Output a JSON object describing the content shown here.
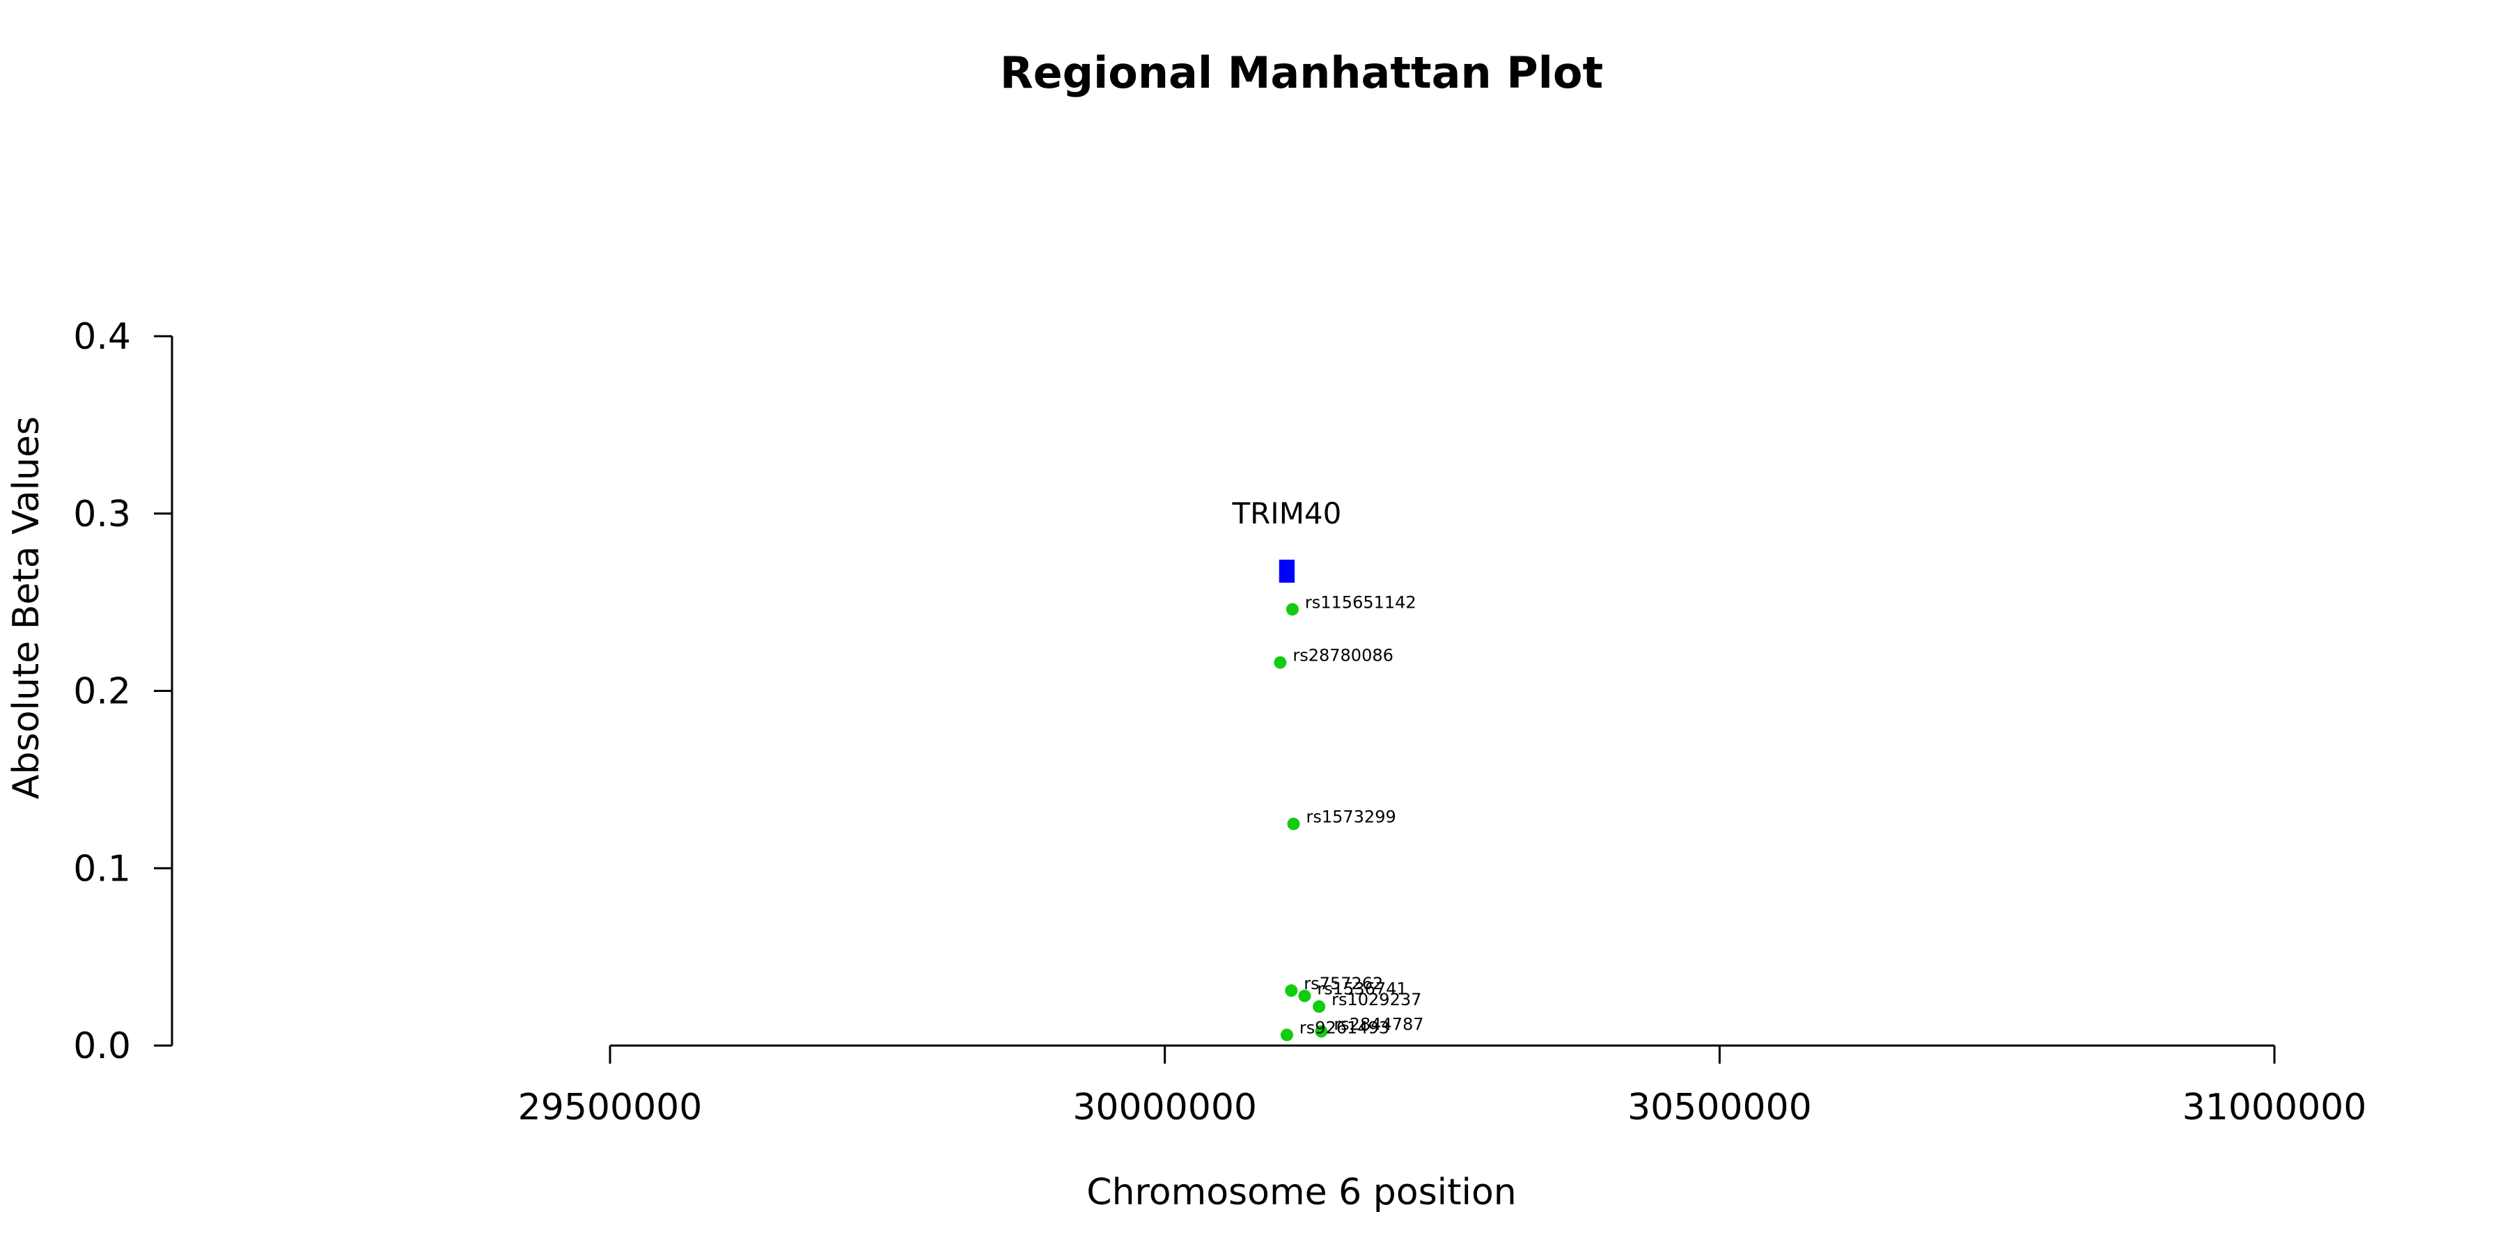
{
  "chart_data": {
    "type": "scatter",
    "title": "Regional Manhattan Plot",
    "xlabel": "Chromosome 6 position",
    "ylabel": "Absolute Beta Values",
    "xlim": [
      29500000,
      31000000
    ],
    "ylim": [
      0,
      0.4
    ],
    "x_ticks": [
      29500000,
      30000000,
      30500000,
      31000000
    ],
    "x_tick_labels": [
      "29500000",
      "30000000",
      "30500000",
      "31000000"
    ],
    "y_ticks": [
      0,
      0.1,
      0.2,
      0.3,
      0.4
    ],
    "y_tick_labels": [
      "0.0",
      "0.1",
      "0.2",
      "0.3",
      "0.4"
    ],
    "point_color": "#11cc11",
    "gene_color": "#0000ff",
    "grid": false,
    "genes": [
      {
        "name": "TRIM40",
        "start": 30103000,
        "end": 30117000,
        "y_bottom": 0.261,
        "y_top": 0.274
      }
    ],
    "points": [
      {
        "label": "rs115651142",
        "x": 30115000,
        "y": 0.246
      },
      {
        "label": "rs28780086",
        "x": 30104000,
        "y": 0.216
      },
      {
        "label": "rs1573299",
        "x": 30116000,
        "y": 0.125
      },
      {
        "label": "rs757262",
        "x": 30114000,
        "y": 0.031
      },
      {
        "label": "rs1536741",
        "x": 30126000,
        "y": 0.028
      },
      {
        "label": "rs1029237",
        "x": 30139000,
        "y": 0.022
      },
      {
        "label": "rs2844787",
        "x": 30141000,
        "y": 0.008
      },
      {
        "label": "rs9261493",
        "x": 30110000,
        "y": 0.006
      }
    ]
  }
}
